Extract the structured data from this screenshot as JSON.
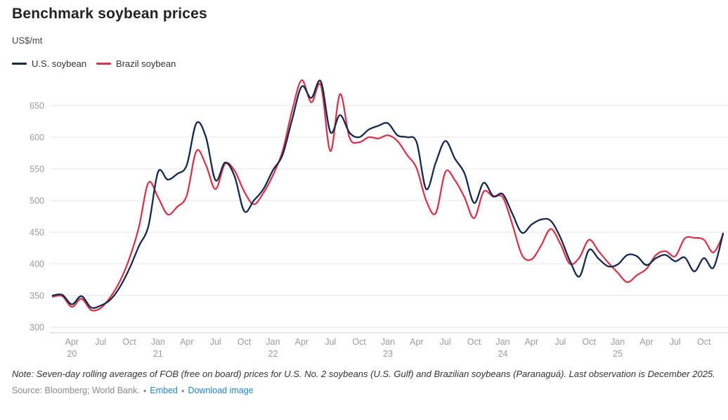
{
  "header": {
    "title": "Benchmark soybean prices",
    "unit": "US$/mt"
  },
  "legend": [
    {
      "label": "U.S. soybean",
      "color": "#13294e"
    },
    {
      "label": "Brazil soybean",
      "color": "#d4374d"
    }
  ],
  "chart_data": {
    "type": "line",
    "title": "Benchmark soybean prices",
    "ylabel": "US$/mt",
    "ylim": [
      300,
      700
    ],
    "y_ticks": [
      300,
      350,
      400,
      450,
      500,
      550,
      600,
      650
    ],
    "grid": "horizontal",
    "legend_position": "top-left",
    "x_interval": "monthly",
    "x": [
      "2020-02",
      "2020-03",
      "2020-04",
      "2020-05",
      "2020-06",
      "2020-07",
      "2020-08",
      "2020-09",
      "2020-10",
      "2020-11",
      "2020-12",
      "2021-01",
      "2021-02",
      "2021-03",
      "2021-04",
      "2021-05",
      "2021-06",
      "2021-07",
      "2021-08",
      "2021-09",
      "2021-10",
      "2021-11",
      "2021-12",
      "2022-01",
      "2022-02",
      "2022-03",
      "2022-04",
      "2022-05",
      "2022-06",
      "2022-07",
      "2022-08",
      "2022-09",
      "2022-10",
      "2022-11",
      "2022-12",
      "2023-01",
      "2023-02",
      "2023-03",
      "2023-04",
      "2023-05",
      "2023-06",
      "2023-07",
      "2023-08",
      "2023-09",
      "2023-10",
      "2023-11",
      "2023-12",
      "2024-01",
      "2024-02",
      "2024-03",
      "2024-04",
      "2024-05",
      "2024-06",
      "2024-07",
      "2024-08",
      "2024-09",
      "2024-10",
      "2024-11",
      "2024-12",
      "2025-01",
      "2025-02",
      "2025-03",
      "2025-04",
      "2025-05",
      "2025-06",
      "2025-07",
      "2025-08",
      "2025-09",
      "2025-10",
      "2025-11",
      "2025-12"
    ],
    "x_ticks": [
      {
        "index": 2,
        "label": "Apr",
        "year": "20"
      },
      {
        "index": 5,
        "label": "Jul",
        "year": ""
      },
      {
        "index": 8,
        "label": "Oct",
        "year": ""
      },
      {
        "index": 11,
        "label": "Jan",
        "year": "21"
      },
      {
        "index": 14,
        "label": "Apr",
        "year": ""
      },
      {
        "index": 17,
        "label": "Jul",
        "year": ""
      },
      {
        "index": 20,
        "label": "Oct",
        "year": ""
      },
      {
        "index": 23,
        "label": "Jan",
        "year": "22"
      },
      {
        "index": 26,
        "label": "Apr",
        "year": ""
      },
      {
        "index": 29,
        "label": "Jul",
        "year": ""
      },
      {
        "index": 32,
        "label": "Oct",
        "year": ""
      },
      {
        "index": 35,
        "label": "Jan",
        "year": "23"
      },
      {
        "index": 38,
        "label": "Apr",
        "year": ""
      },
      {
        "index": 41,
        "label": "Jul",
        "year": ""
      },
      {
        "index": 44,
        "label": "Oct",
        "year": ""
      },
      {
        "index": 47,
        "label": "Jan",
        "year": "24"
      },
      {
        "index": 50,
        "label": "Apr",
        "year": ""
      },
      {
        "index": 53,
        "label": "Jul",
        "year": ""
      },
      {
        "index": 56,
        "label": "Oct",
        "year": ""
      },
      {
        "index": 59,
        "label": "Jan",
        "year": "25"
      },
      {
        "index": 62,
        "label": "Apr",
        "year": ""
      },
      {
        "index": 65,
        "label": "Jul",
        "year": ""
      },
      {
        "index": 68,
        "label": "Oct",
        "year": ""
      }
    ],
    "series": [
      {
        "name": "U.S. soybean",
        "color": "#13294e",
        "values": [
          350,
          351,
          336,
          349,
          331,
          334,
          343,
          363,
          392,
          428,
          460,
          545,
          533,
          542,
          556,
          622,
          600,
          532,
          560,
          538,
          483,
          500,
          518,
          548,
          572,
          628,
          680,
          662,
          688,
          608,
          635,
          607,
          600,
          612,
          618,
          622,
          603,
          600,
          592,
          518,
          560,
          594,
          566,
          543,
          496,
          528,
          507,
          510,
          479,
          449,
          462,
          470,
          468,
          442,
          405,
          380,
          422,
          408,
          396,
          399,
          414,
          412,
          398,
          409,
          414,
          404,
          410,
          388,
          409,
          394,
          448
        ]
      },
      {
        "name": "Brazil soybean",
        "color": "#d4374d",
        "values": [
          348,
          349,
          332,
          345,
          327,
          330,
          347,
          372,
          408,
          458,
          528,
          505,
          478,
          490,
          508,
          578,
          556,
          518,
          558,
          547,
          514,
          494,
          512,
          540,
          578,
          642,
          690,
          655,
          682,
          578,
          668,
          599,
          592,
          600,
          598,
          603,
          594,
          572,
          551,
          500,
          480,
          545,
          532,
          505,
          472,
          514,
          506,
          505,
          462,
          414,
          407,
          429,
          455,
          432,
          400,
          410,
          438,
          420,
          402,
          386,
          371,
          382,
          392,
          414,
          420,
          412,
          440,
          441,
          438,
          418,
          446
        ]
      }
    ]
  },
  "footer": {
    "note": "Note: Seven-day rolling averages of FOB (free on board) prices for U.S. No. 2 soybeans (U.S. Gulf) and Brazilian soybeans (Paranaguá). Last observation is December 2025.",
    "source": "Source: Bloomberg; World Bank.",
    "embed_label": "Embed",
    "download_label": "Download image",
    "link_color": "#2186c8",
    "grid_color": "#e5e5e5",
    "axis_line_color": "#cccccc",
    "tick_label_color": "#9b9b9b"
  }
}
